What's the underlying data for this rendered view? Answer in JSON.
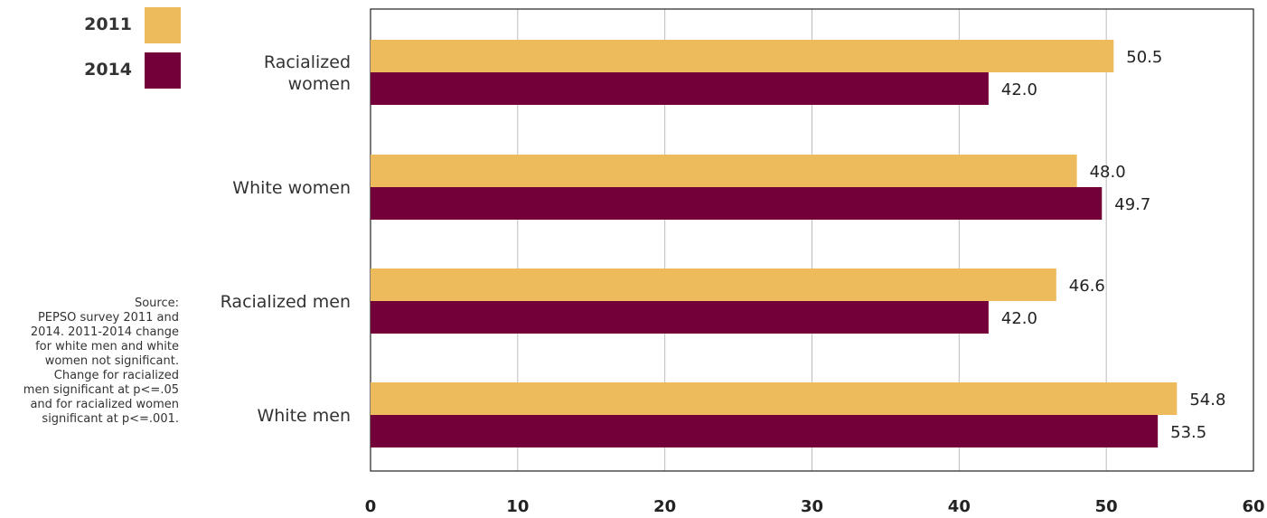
{
  "legend": {
    "items": [
      {
        "label": "2011",
        "color": "#EDBB5B"
      },
      {
        "label": "2014",
        "color": "#730039"
      }
    ]
  },
  "source_note": [
    "Source:",
    "PEPSO survey 2011 and",
    "2014. 2011-2014 change",
    "for white men and white",
    "women not significant.",
    "Change for racialized",
    "men significant at p<=.05",
    "and for racialized women",
    "significant at p<=.001."
  ],
  "chart_data": {
    "type": "bar",
    "orientation": "horizontal",
    "categories": [
      [
        "Racialized",
        "women"
      ],
      [
        "White women"
      ],
      [
        "Racialized men"
      ],
      [
        "White men"
      ]
    ],
    "series": [
      {
        "name": "2011",
        "color": "#EDBB5B",
        "values": [
          50.5,
          48.0,
          46.6,
          54.8
        ],
        "labels": [
          "50.5",
          "48.0",
          "46.6",
          "54.8"
        ]
      },
      {
        "name": "2014",
        "color": "#730039",
        "values": [
          42.0,
          49.7,
          42.0,
          53.5
        ],
        "labels": [
          "42.0",
          "49.7",
          "42.0",
          "53.5"
        ]
      }
    ],
    "xlim": [
      0,
      60
    ],
    "xticks": [
      "0",
      "10",
      "20",
      "30",
      "40",
      "50",
      "60"
    ],
    "grid": true,
    "legend_position": "top-left"
  }
}
